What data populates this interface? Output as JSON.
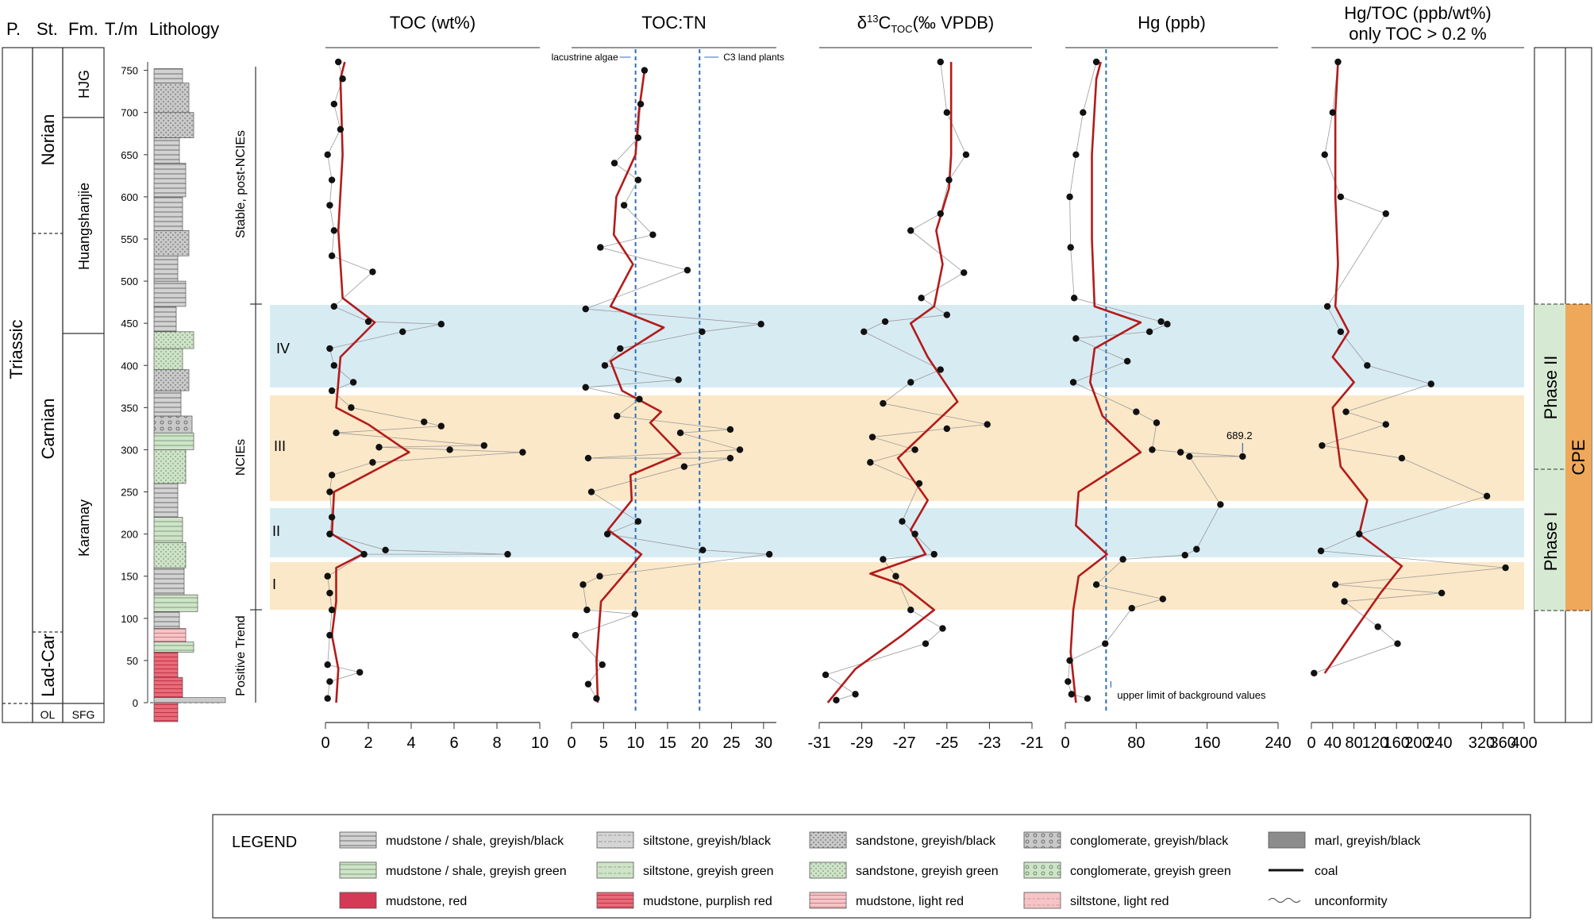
{
  "column_headers": {
    "period": "P.",
    "stage": "St.",
    "formation": "Fm.",
    "thickness": "T./m",
    "lithology": "Lithology"
  },
  "stratigraphy": {
    "period": "Triassic",
    "stages": [
      "Norian",
      "Carnian",
      "Lad-Car",
      "OL"
    ],
    "formations": [
      "HJG",
      "Huangshanjie",
      "Karamay",
      "SFG"
    ],
    "depth_ticks": [
      "0",
      "50",
      "100",
      "150",
      "200",
      "250",
      "300",
      "350",
      "400",
      "450",
      "500",
      "550",
      "600",
      "650",
      "700",
      "750"
    ],
    "trend_labels": [
      "Stable, post-NCIEs",
      "NCIEs",
      "Positive Trend"
    ],
    "ncie_labels": [
      "IV",
      "III",
      "II",
      "I"
    ],
    "phase_labels": [
      "Phase II",
      "Phase I"
    ],
    "cpe_label": "CPE"
  },
  "bands": {
    "blue": "#d7ebf3",
    "orange": "#fbe8c8",
    "phase_green": "#d6ead3",
    "cpe_orange": "#efa85a"
  },
  "colors": {
    "curve": "#b31b1b",
    "point": "#111111",
    "point_grey": "#a6a6a6",
    "dashed_line": "#2e6fb7"
  },
  "annotations": {
    "lacustrine": "lacustrine algae",
    "c3": "C3 land plants",
    "hg_max": "689.2",
    "background": "upper limit of background values"
  },
  "legend": {
    "title": "LEGEND",
    "items": [
      "mudstone / shale, greyish/black",
      "mudstone / shale, greyish green",
      "mudstone, red",
      "siltstone, greyish/black",
      "siltstone, greyish green",
      "mudstone, purplish red",
      "sandstone, greyish/black",
      "sandstone, greyish green",
      "mudstone, light red",
      "conglomerate, greyish/black",
      "conglomerate, greyish green",
      "siltstone, light red",
      "marl, greyish/black",
      "coal",
      "unconformity"
    ]
  },
  "chart_data": [
    {
      "type": "scatter",
      "title": "TOC (wt%)",
      "x_ticks": [
        "0",
        "2",
        "4",
        "6",
        "8",
        "10"
      ],
      "xlim": [
        0,
        10
      ],
      "ylim": [
        0,
        760
      ],
      "points": [
        [
          0.1,
          5
        ],
        [
          0.2,
          25
        ],
        [
          0.1,
          45
        ],
        [
          1.6,
          36
        ],
        [
          0.2,
          80
        ],
        [
          0.3,
          110
        ],
        [
          0.2,
          130
        ],
        [
          0.1,
          150
        ],
        [
          1.8,
          176
        ],
        [
          8.5,
          176
        ],
        [
          2.8,
          181
        ],
        [
          0.2,
          200
        ],
        [
          0.3,
          220
        ],
        [
          0.2,
          250
        ],
        [
          0.3,
          270
        ],
        [
          2.2,
          285
        ],
        [
          9.2,
          297
        ],
        [
          5.8,
          300
        ],
        [
          7.4,
          305
        ],
        [
          2.5,
          303
        ],
        [
          0.5,
          320
        ],
        [
          4.6,
          333
        ],
        [
          5.4,
          328
        ],
        [
          1.2,
          350
        ],
        [
          0.3,
          370
        ],
        [
          1.3,
          380
        ],
        [
          0.4,
          400
        ],
        [
          0.2,
          420
        ],
        [
          3.6,
          440
        ],
        [
          5.4,
          449
        ],
        [
          2.0,
          452
        ],
        [
          0.4,
          470
        ],
        [
          2.2,
          511
        ],
        [
          0.3,
          530
        ],
        [
          0.4,
          560
        ],
        [
          0.2,
          590
        ],
        [
          0.3,
          620
        ],
        [
          0.1,
          650
        ],
        [
          0.7,
          680
        ],
        [
          0.4,
          710
        ],
        [
          0.8,
          740
        ],
        [
          0.6,
          760
        ]
      ],
      "curve": [
        [
          0.5,
          0
        ],
        [
          0.6,
          40
        ],
        [
          0.3,
          80
        ],
        [
          0.5,
          120
        ],
        [
          0.5,
          160
        ],
        [
          1.8,
          177
        ],
        [
          0.3,
          200
        ],
        [
          0.4,
          250
        ],
        [
          3.9,
          297
        ],
        [
          2.0,
          330
        ],
        [
          0.5,
          350
        ],
        [
          0.7,
          410
        ],
        [
          2.3,
          451
        ],
        [
          0.8,
          480
        ],
        [
          0.6,
          560
        ],
        [
          0.8,
          650
        ],
        [
          0.7,
          740
        ],
        [
          0.9,
          760
        ]
      ]
    },
    {
      "type": "scatter",
      "title": "TOC:TN",
      "x_ticks": [
        "0",
        "5",
        "10",
        "15",
        "20",
        "25",
        "30"
      ],
      "xlim": [
        0,
        32
      ],
      "ylim": [
        0,
        760
      ],
      "vlines": [
        10,
        20
      ],
      "points": [
        [
          3.9,
          5
        ],
        [
          2.6,
          22
        ],
        [
          4.8,
          45
        ],
        [
          0.6,
          80
        ],
        [
          2.4,
          110
        ],
        [
          9.9,
          105
        ],
        [
          1.8,
          140
        ],
        [
          4.4,
          150
        ],
        [
          20.5,
          181
        ],
        [
          30.9,
          176
        ],
        [
          5.6,
          200
        ],
        [
          10.4,
          215
        ],
        [
          3.1,
          250
        ],
        [
          24.8,
          290
        ],
        [
          17.6,
          280
        ],
        [
          26.3,
          300
        ],
        [
          2.6,
          290
        ],
        [
          17.0,
          320
        ],
        [
          24.8,
          324
        ],
        [
          7.1,
          340
        ],
        [
          10.6,
          360
        ],
        [
          2.2,
          374
        ],
        [
          16.7,
          383
        ],
        [
          5.2,
          400
        ],
        [
          7.6,
          420
        ],
        [
          29.6,
          449
        ],
        [
          20.4,
          440
        ],
        [
          2.2,
          467
        ],
        [
          18.1,
          513
        ],
        [
          4.5,
          540
        ],
        [
          12.7,
          555
        ],
        [
          8.2,
          590
        ],
        [
          10.4,
          620
        ],
        [
          6.7,
          640
        ],
        [
          10.4,
          670
        ],
        [
          10.8,
          710
        ],
        [
          11.4,
          750
        ]
      ],
      "curve": [
        [
          4.1,
          0
        ],
        [
          3.9,
          50
        ],
        [
          4.6,
          120
        ],
        [
          10.9,
          176
        ],
        [
          5.7,
          205
        ],
        [
          9.4,
          240
        ],
        [
          9.2,
          270
        ],
        [
          17.0,
          295
        ],
        [
          12.3,
          332
        ],
        [
          14.0,
          345
        ],
        [
          7.9,
          370
        ],
        [
          6.1,
          405
        ],
        [
          14.4,
          445
        ],
        [
          6.1,
          470
        ],
        [
          9.6,
          520
        ],
        [
          6.6,
          555
        ],
        [
          7.0,
          600
        ],
        [
          10.0,
          650
        ],
        [
          10.5,
          700
        ],
        [
          11.4,
          750
        ]
      ]
    },
    {
      "type": "scatter",
      "title": "δ13C_TOC(‰ VPDB)",
      "x_ticks": [
        "-31",
        "-29",
        "-27",
        "-25",
        "-23",
        "-21"
      ],
      "xlim": [
        -31,
        -21
      ],
      "ylim": [
        0,
        760
      ],
      "points": [
        [
          -30.2,
          3
        ],
        [
          -29.3,
          10
        ],
        [
          -30.7,
          33
        ],
        [
          -26.0,
          70
        ],
        [
          -25.2,
          88
        ],
        [
          -26.7,
          110
        ],
        [
          -27.4,
          150
        ],
        [
          -28.0,
          170
        ],
        [
          -25.6,
          176
        ],
        [
          -26.5,
          200
        ],
        [
          -27.1,
          215
        ],
        [
          -26.3,
          260
        ],
        [
          -28.6,
          285
        ],
        [
          -26.5,
          300
        ],
        [
          -28.5,
          315
        ],
        [
          -25.0,
          325
        ],
        [
          -23.1,
          330
        ],
        [
          -28.0,
          355
        ],
        [
          -26.7,
          380
        ],
        [
          -25.3,
          395
        ],
        [
          -28.9,
          440
        ],
        [
          -27.9,
          452
        ],
        [
          -25.0,
          460
        ],
        [
          -26.2,
          480
        ],
        [
          -24.2,
          510
        ],
        [
          -26.7,
          560
        ],
        [
          -25.3,
          580
        ],
        [
          -24.9,
          620
        ],
        [
          -24.1,
          650
        ],
        [
          -25.0,
          700
        ],
        [
          -25.3,
          760
        ]
      ],
      "curve": [
        [
          -30.6,
          0
        ],
        [
          -29.3,
          40
        ],
        [
          -27.1,
          80
        ],
        [
          -25.6,
          110
        ],
        [
          -27.1,
          140
        ],
        [
          -28.6,
          153
        ],
        [
          -26.0,
          176
        ],
        [
          -26.7,
          205
        ],
        [
          -25.9,
          240
        ],
        [
          -27.3,
          290
        ],
        [
          -24.5,
          357
        ],
        [
          -25.9,
          410
        ],
        [
          -26.7,
          450
        ],
        [
          -25.6,
          470
        ],
        [
          -25.2,
          520
        ],
        [
          -25.5,
          560
        ],
        [
          -24.9,
          610
        ],
        [
          -24.8,
          650
        ],
        [
          -24.8,
          700
        ],
        [
          -24.8,
          760
        ]
      ]
    },
    {
      "type": "scatter",
      "title": "Hg (ppb)",
      "x_ticks": [
        "0",
        "80",
        "160",
        "240"
      ],
      "xlim": [
        0,
        240
      ],
      "ylim": [
        0,
        760
      ],
      "vlines": [
        46
      ],
      "annotated_max_ppb": 689.2,
      "points": [
        [
          7,
          10
        ],
        [
          3,
          25
        ],
        [
          25,
          5
        ],
        [
          5,
          50
        ],
        [
          45,
          70
        ],
        [
          110,
          123
        ],
        [
          75,
          112
        ],
        [
          35,
          140
        ],
        [
          148,
          182
        ],
        [
          135,
          175
        ],
        [
          65,
          170
        ],
        [
          175,
          235
        ],
        [
          140,
          292
        ],
        [
          130,
          297
        ],
        [
          200,
          292
        ],
        [
          98,
          300
        ],
        [
          103,
          332
        ],
        [
          80,
          345
        ],
        [
          9,
          380
        ],
        [
          70,
          405
        ],
        [
          12,
          432
        ],
        [
          115,
          449
        ],
        [
          108,
          452
        ],
        [
          95,
          440
        ],
        [
          10,
          480
        ],
        [
          6,
          540
        ],
        [
          5,
          600
        ],
        [
          12,
          650
        ],
        [
          20,
          700
        ],
        [
          35,
          760
        ]
      ],
      "curve": [
        [
          12,
          0
        ],
        [
          6,
          60
        ],
        [
          9,
          110
        ],
        [
          15,
          150
        ],
        [
          47,
          176
        ],
        [
          12,
          210
        ],
        [
          15,
          250
        ],
        [
          85,
          297
        ],
        [
          42,
          340
        ],
        [
          28,
          380
        ],
        [
          33,
          420
        ],
        [
          85,
          451
        ],
        [
          33,
          470
        ],
        [
          30,
          550
        ],
        [
          30,
          650
        ],
        [
          35,
          740
        ],
        [
          40,
          760
        ]
      ]
    },
    {
      "type": "scatter",
      "title": "Hg/TOC (ppb/wt%)",
      "subtitle": "only TOC > 0.2 %",
      "x_ticks": [
        "0",
        "40",
        "80",
        "120",
        "160",
        "200",
        "240",
        "320",
        "360",
        "400"
      ],
      "xlim": [
        0,
        400
      ],
      "ylim": [
        0,
        760
      ],
      "points": [
        [
          5,
          35
        ],
        [
          162,
          70
        ],
        [
          125,
          90
        ],
        [
          62,
          120
        ],
        [
          245,
          130
        ],
        [
          365,
          160
        ],
        [
          45,
          140
        ],
        [
          18,
          180
        ],
        [
          90,
          200
        ],
        [
          330,
          245
        ],
        [
          170,
          290
        ],
        [
          20,
          305
        ],
        [
          140,
          330
        ],
        [
          65,
          345
        ],
        [
          225,
          378
        ],
        [
          105,
          400
        ],
        [
          55,
          440
        ],
        [
          30,
          470
        ],
        [
          140,
          580
        ],
        [
          55,
          600
        ],
        [
          25,
          650
        ],
        [
          40,
          700
        ],
        [
          50,
          760
        ]
      ],
      "curve": [
        [
          25,
          35
        ],
        [
          80,
          85
        ],
        [
          130,
          130
        ],
        [
          170,
          162
        ],
        [
          90,
          200
        ],
        [
          105,
          240
        ],
        [
          55,
          280
        ],
        [
          40,
          350
        ],
        [
          80,
          380
        ],
        [
          40,
          410
        ],
        [
          70,
          440
        ],
        [
          45,
          470
        ],
        [
          50,
          520
        ],
        [
          45,
          600
        ],
        [
          45,
          700
        ],
        [
          50,
          760
        ]
      ]
    }
  ]
}
